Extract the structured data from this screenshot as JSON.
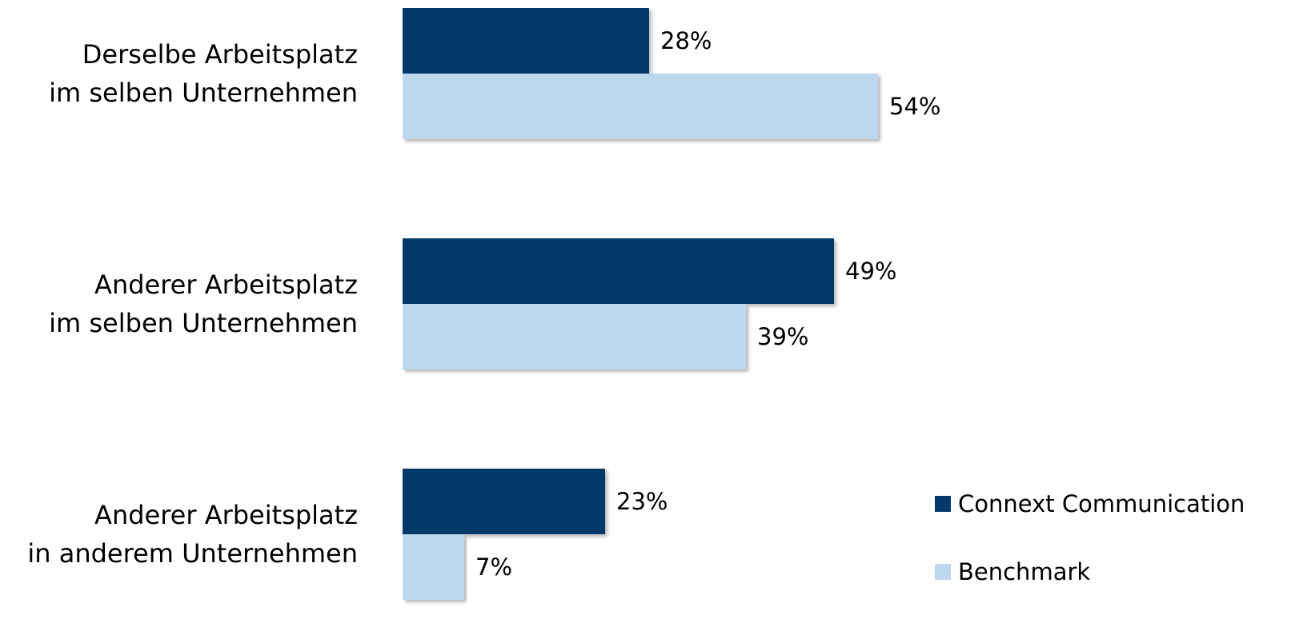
{
  "chart_data": {
    "type": "bar",
    "orientation": "horizontal",
    "categories": [
      "Derselbe Arbeitsplatz\nim selben Unternehmen",
      "Anderer Arbeitsplatz\nim selben Unternehmen",
      "Anderer Arbeitsplatz\nin anderem Unternehmen"
    ],
    "series": [
      {
        "name": "Connext Communication",
        "color": "#03386a",
        "values": [
          28,
          49,
          23
        ],
        "value_labels": [
          "28%",
          "49%",
          "23%"
        ]
      },
      {
        "name": "Benchmark",
        "color": "#bdd7ee",
        "values": [
          54,
          39,
          7
        ],
        "value_labels": [
          "54%",
          "39%",
          "7%"
        ]
      }
    ],
    "legend": "bottom-right"
  }
}
